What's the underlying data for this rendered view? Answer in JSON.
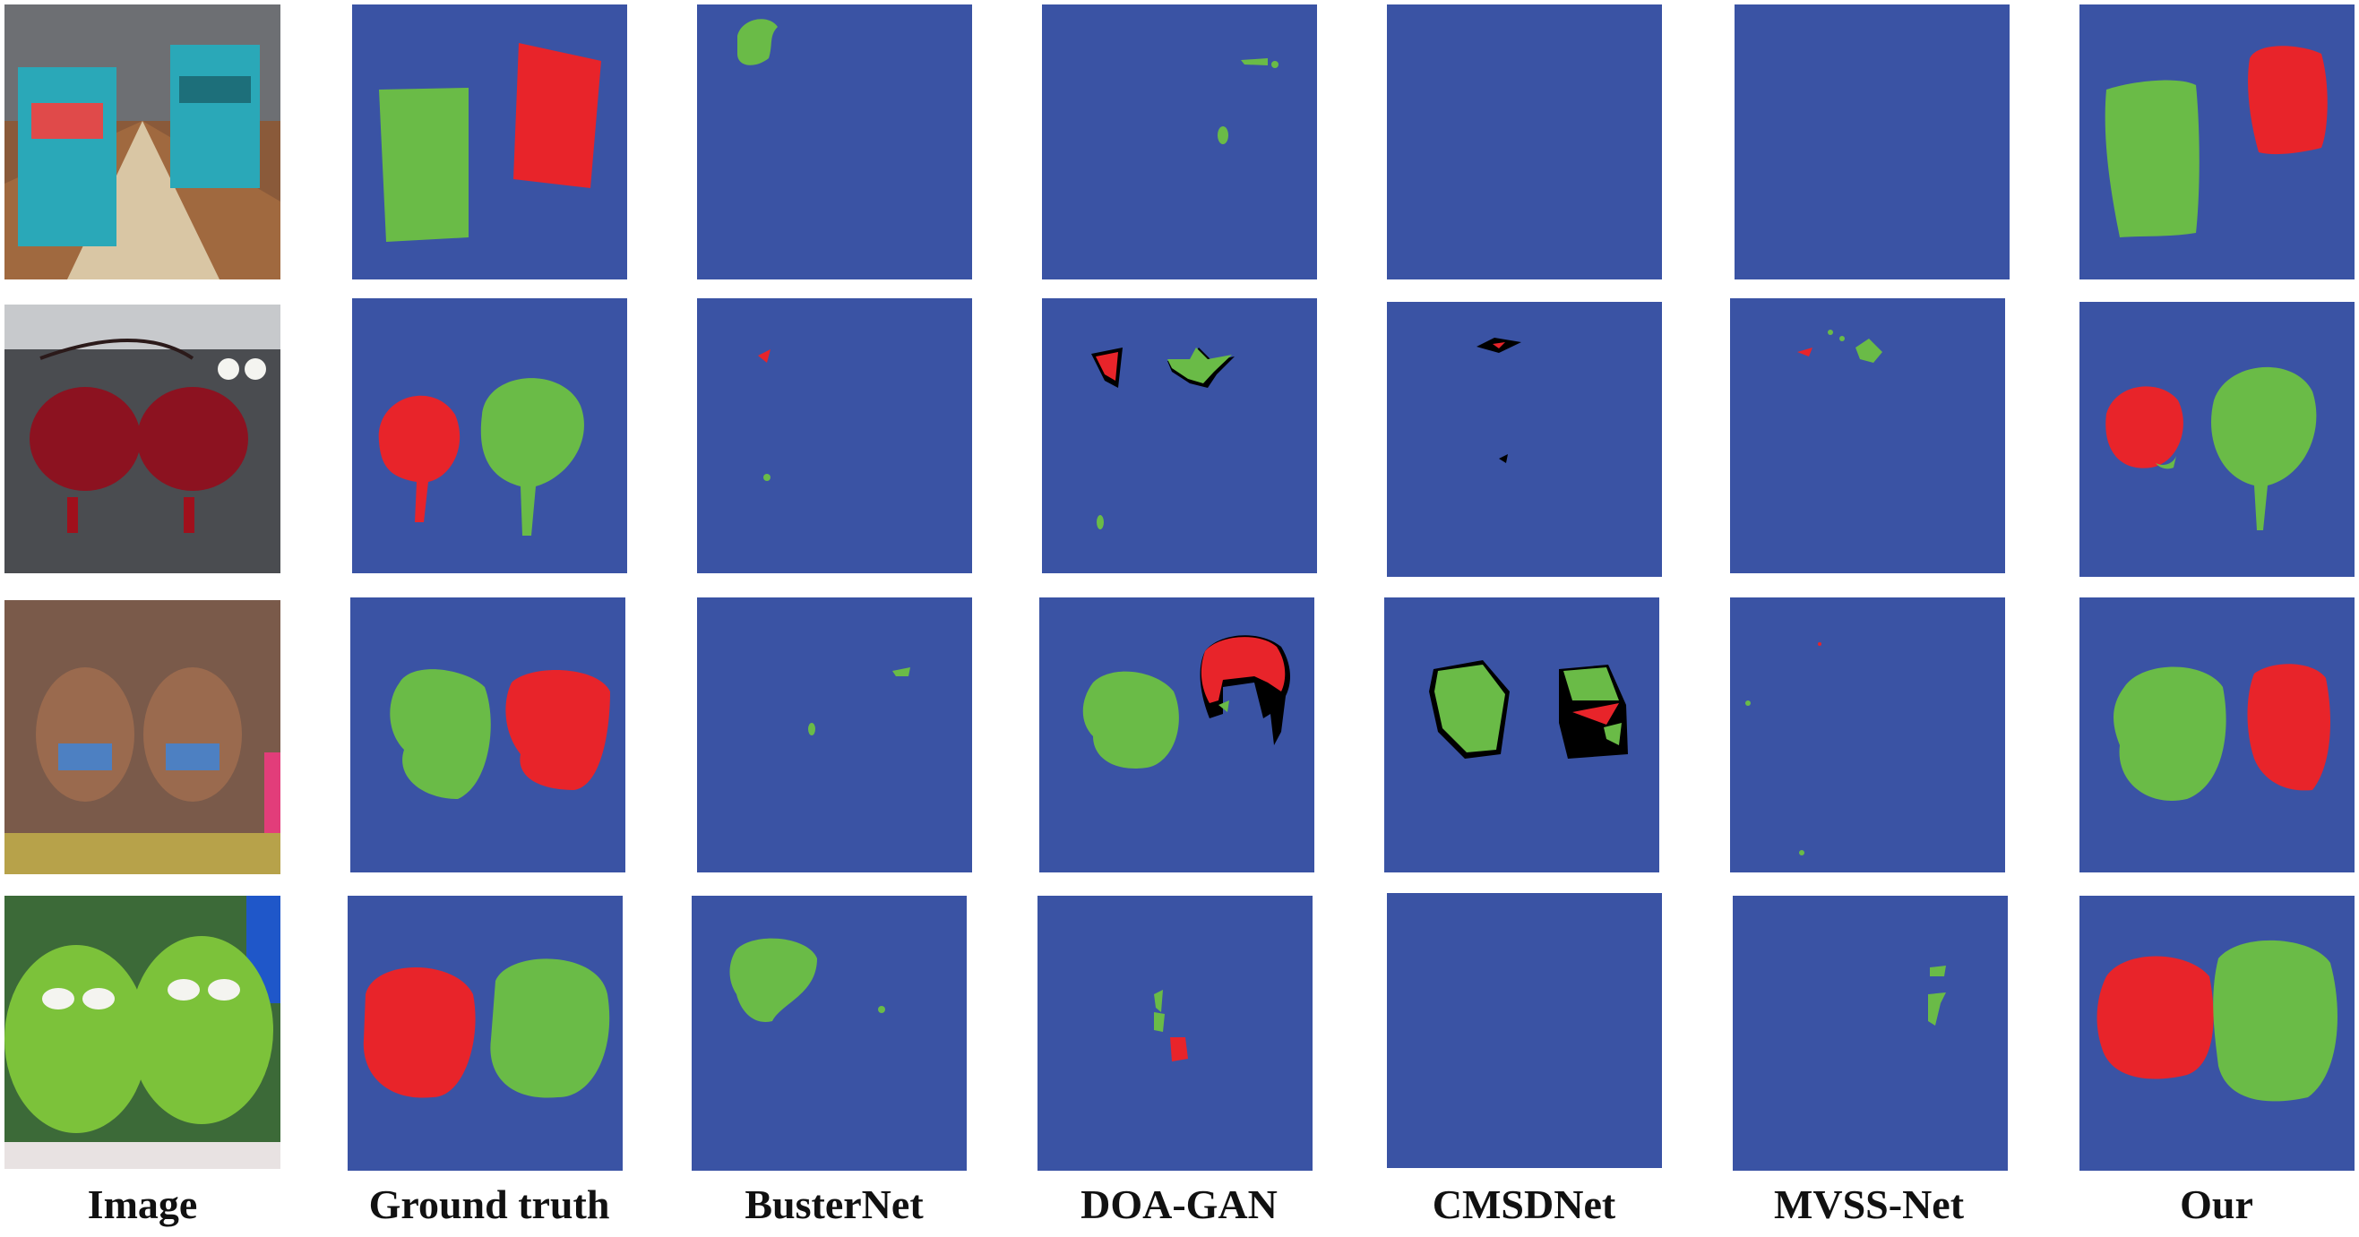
{
  "columns": [
    {
      "key": "image",
      "label": "Image"
    },
    {
      "key": "ground_truth",
      "label": "Ground truth"
    },
    {
      "key": "busternet",
      "label": "BusterNet"
    },
    {
      "key": "doagan",
      "label": "DOA-GAN"
    },
    {
      "key": "cmsdnet",
      "label": "CMSDNet"
    },
    {
      "key": "mvssnet",
      "label": "MVSS-Net"
    },
    {
      "key": "our",
      "label": "Our"
    }
  ],
  "colors": {
    "background": "#3a53a4",
    "source": "#6abb47",
    "target": "#e8242a",
    "error": "#000000"
  }
}
